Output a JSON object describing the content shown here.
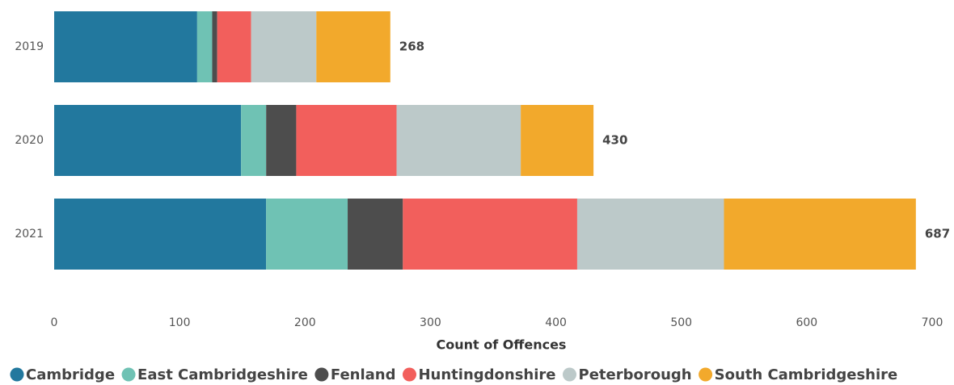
{
  "chart_data": {
    "type": "stacked-bar-horizontal",
    "categories": [
      "2019",
      "2020",
      "2021"
    ],
    "series": [
      {
        "name": "Cambridge",
        "color": "#22789e",
        "values": [
          114,
          149,
          169
        ]
      },
      {
        "name": "East Cambridgeshire",
        "color": "#6fc2b4",
        "values": [
          12,
          20,
          65
        ]
      },
      {
        "name": "Fenland",
        "color": "#4d4d4d",
        "values": [
          4,
          24,
          44
        ]
      },
      {
        "name": "Huntingdonshire",
        "color": "#f25f5c",
        "values": [
          27,
          80,
          139
        ]
      },
      {
        "name": "Peterborough",
        "color": "#bcc9c9",
        "values": [
          52,
          99,
          117
        ]
      },
      {
        "name": "South Cambridgeshire",
        "color": "#f2a92c",
        "values": [
          59,
          58,
          153
        ]
      }
    ],
    "totals": [
      268,
      430,
      687
    ],
    "xlabel": "Count of Offences",
    "xlim": [
      0,
      700
    ],
    "xticks": [
      0,
      100,
      200,
      300,
      400,
      500,
      600,
      700
    ],
    "grid": false,
    "legend": "bottom-left"
  }
}
